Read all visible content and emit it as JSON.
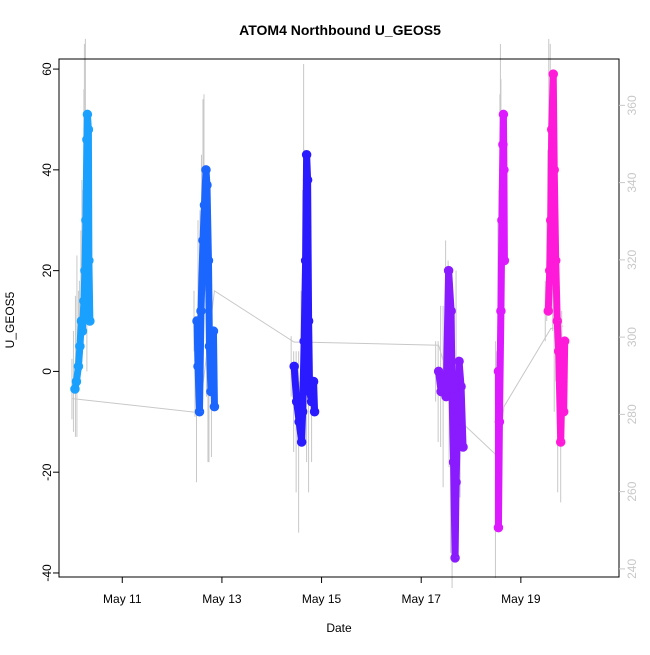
{
  "chart_data": {
    "type": "scatter",
    "title": "ATOM4 Northbound U_GEOS5",
    "xlabel": "Date",
    "ylabel": "U_GEOS5",
    "x_ticks": [
      "May 11",
      "May 13",
      "May 15",
      "May 17",
      "May 19"
    ],
    "x_tick_days": [
      11,
      13,
      15,
      17,
      19
    ],
    "xlim_days": [
      9.73,
      20.97
    ],
    "ylim": [
      -40.8,
      62.0
    ],
    "y_ticks": [
      -40,
      -20,
      0,
      20,
      40,
      60
    ],
    "y2lim": [
      237.9,
      372.0
    ],
    "y2_ticks": [
      240,
      260,
      280,
      300,
      320,
      340,
      360
    ],
    "secondary_series_color": "#c8c8c8",
    "grid": false,
    "series": [
      {
        "color": "#1aa1ff",
        "points": [
          [
            10.05,
            -3.5
          ],
          [
            10.08,
            -2
          ],
          [
            10.12,
            1
          ],
          [
            10.15,
            5
          ],
          [
            10.18,
            10
          ],
          [
            10.2,
            8
          ],
          [
            10.23,
            14
          ],
          [
            10.25,
            20
          ],
          [
            10.27,
            30
          ],
          [
            10.29,
            46
          ],
          [
            10.3,
            51
          ],
          [
            10.32,
            48
          ],
          [
            10.33,
            22
          ],
          [
            10.35,
            10
          ]
        ]
      },
      {
        "color": "#1a66ff",
        "points": [
          [
            12.5,
            10
          ],
          [
            12.52,
            1
          ],
          [
            12.55,
            -8
          ],
          [
            12.58,
            12
          ],
          [
            12.62,
            26
          ],
          [
            12.65,
            33
          ],
          [
            12.68,
            40
          ],
          [
            12.7,
            37
          ],
          [
            12.73,
            22
          ],
          [
            12.75,
            5
          ],
          [
            12.78,
            -4
          ],
          [
            12.8,
            0
          ],
          [
            12.83,
            8
          ],
          [
            12.85,
            -7
          ]
        ]
      },
      {
        "color": "#2a1aff",
        "points": [
          [
            14.45,
            1
          ],
          [
            14.5,
            -6
          ],
          [
            14.55,
            -10
          ],
          [
            14.6,
            -14
          ],
          [
            14.62,
            -8
          ],
          [
            14.65,
            6
          ],
          [
            14.68,
            22
          ],
          [
            14.7,
            43
          ],
          [
            14.72,
            38
          ],
          [
            14.74,
            10
          ],
          [
            14.76,
            -4
          ],
          [
            14.8,
            -6
          ],
          [
            14.84,
            -2
          ],
          [
            14.86,
            -8
          ]
        ]
      },
      {
        "color": "#8a1aff",
        "points": [
          [
            17.35,
            0
          ],
          [
            17.4,
            -4
          ],
          [
            17.45,
            -1
          ],
          [
            17.5,
            -5
          ],
          [
            17.55,
            20
          ],
          [
            17.6,
            12
          ],
          [
            17.62,
            -5
          ],
          [
            17.65,
            -18
          ],
          [
            17.68,
            -37
          ],
          [
            17.7,
            -22
          ],
          [
            17.73,
            -10
          ],
          [
            17.76,
            2
          ],
          [
            17.8,
            -3
          ],
          [
            17.84,
            -15
          ]
        ]
      },
      {
        "color": "#dd1aff",
        "points": [
          [
            18.55,
            0
          ],
          [
            18.55,
            -31
          ],
          [
            18.57,
            -10
          ],
          [
            18.6,
            12
          ],
          [
            18.62,
            30
          ],
          [
            18.64,
            45
          ],
          [
            18.65,
            51
          ],
          [
            18.66,
            40
          ],
          [
            18.67,
            22
          ]
        ]
      },
      {
        "color": "#ff1ad9",
        "points": [
          [
            19.55,
            12
          ],
          [
            19.58,
            20
          ],
          [
            19.6,
            30
          ],
          [
            19.62,
            48
          ],
          [
            19.65,
            59
          ],
          [
            19.67,
            40
          ],
          [
            19.7,
            22
          ],
          [
            19.73,
            10
          ],
          [
            19.76,
            4
          ],
          [
            19.8,
            -14
          ],
          [
            19.83,
            0
          ],
          [
            19.86,
            -8
          ],
          [
            19.88,
            6
          ]
        ]
      }
    ],
    "secondary_series": [
      [
        10.0,
        -5.4
      ],
      [
        12.55,
        -8.2
      ],
      [
        12.85,
        16
      ],
      [
        14.45,
        5.8
      ],
      [
        14.65,
        5.8
      ],
      [
        17.35,
        5.2
      ],
      [
        17.8,
        -10
      ],
      [
        18.55,
        -17
      ],
      [
        18.66,
        -7
      ],
      [
        19.6,
        8.5
      ],
      [
        19.85,
        9
      ]
    ]
  }
}
